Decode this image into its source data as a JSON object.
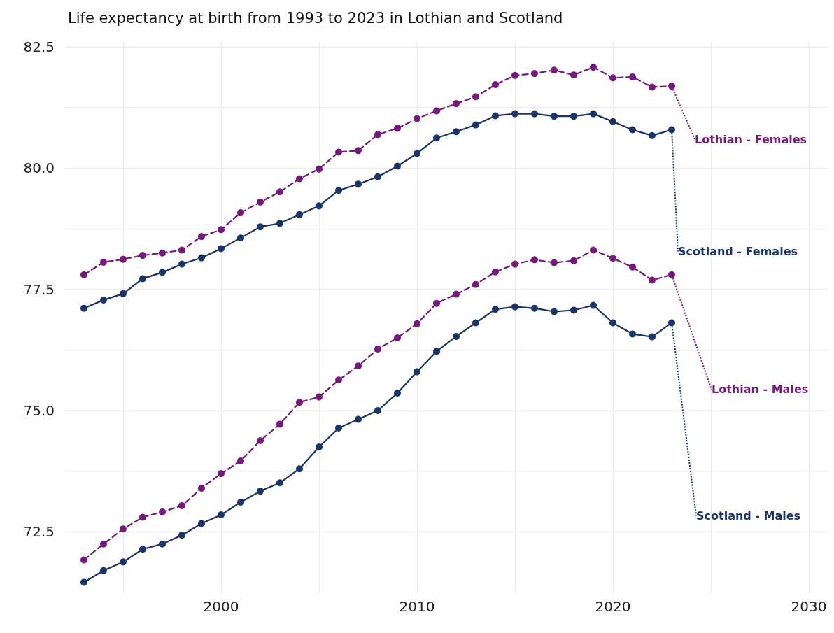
{
  "chart_data": {
    "type": "line",
    "title": "Life expectancy at birth from 1993 to 2023 in Lothian and Scotland",
    "x": [
      1993,
      1994,
      1995,
      1996,
      1997,
      1998,
      1999,
      2000,
      2001,
      2002,
      2003,
      2004,
      2005,
      2006,
      2007,
      2008,
      2009,
      2010,
      2011,
      2012,
      2013,
      2014,
      2015,
      2016,
      2017,
      2018,
      2019,
      2020,
      2021,
      2022,
      2023
    ],
    "series": [
      {
        "name": "Lothian - Females",
        "color": "#751a7b",
        "line_style": "dashed",
        "values": [
          77.8,
          78.06,
          78.12,
          78.2,
          78.25,
          78.31,
          78.59,
          78.73,
          79.08,
          79.3,
          79.51,
          79.78,
          79.98,
          80.33,
          80.36,
          80.69,
          80.82,
          81.02,
          81.18,
          81.33,
          81.47,
          81.72,
          81.91,
          81.95,
          82.02,
          81.92,
          82.08,
          81.86,
          81.88,
          81.67,
          81.69
        ]
      },
      {
        "name": "Scotland - Females",
        "color": "#1b3468",
        "line_style": "solid",
        "values": [
          77.11,
          77.28,
          77.41,
          77.72,
          77.85,
          78.02,
          78.15,
          78.34,
          78.56,
          78.79,
          78.86,
          79.04,
          79.22,
          79.54,
          79.67,
          79.82,
          80.04,
          80.3,
          80.62,
          80.75,
          80.89,
          81.08,
          81.12,
          81.12,
          81.07,
          81.07,
          81.12,
          80.96,
          80.79,
          80.67,
          80.79
        ]
      },
      {
        "name": "Lothian - Males",
        "color": "#751a7b",
        "line_style": "dashed",
        "values": [
          71.92,
          72.25,
          72.56,
          72.8,
          72.91,
          73.04,
          73.4,
          73.7,
          73.96,
          74.38,
          74.72,
          75.17,
          75.28,
          75.63,
          75.92,
          76.27,
          76.5,
          76.79,
          77.21,
          77.4,
          77.6,
          77.86,
          78.02,
          78.11,
          78.05,
          78.09,
          78.31,
          78.14,
          77.96,
          77.69,
          77.8
        ]
      },
      {
        "name": "Scotland - Males",
        "color": "#1b3468",
        "line_style": "solid",
        "values": [
          71.46,
          71.7,
          71.88,
          72.14,
          72.25,
          72.43,
          72.67,
          72.85,
          73.11,
          73.34,
          73.51,
          73.8,
          74.25,
          74.64,
          74.82,
          75.0,
          75.36,
          75.8,
          76.22,
          76.53,
          76.81,
          77.09,
          77.14,
          77.11,
          77.04,
          77.07,
          77.17,
          76.81,
          76.58,
          76.52,
          76.81
        ]
      }
    ],
    "xlim": [
      1992,
      2031
    ],
    "xticks": [
      {
        "value": 1995,
        "label": null
      },
      2000,
      {
        "value": 2005,
        "label": null
      },
      2010,
      {
        "value": 2015,
        "label": null
      },
      2020,
      {
        "value": 2025,
        "label": null
      },
      2030
    ],
    "ylim": [
      71.25,
      82.6
    ],
    "yticks": [
      {
        "value": 72.5,
        "label": "72.5"
      },
      {
        "value": 73.75,
        "label": null
      },
      {
        "value": 75,
        "label": "75.0"
      },
      {
        "value": 76.25,
        "label": null
      },
      {
        "value": 77.5,
        "label": "77.5"
      },
      {
        "value": 78.75,
        "label": null
      },
      {
        "value": 80,
        "label": "80.0"
      },
      {
        "value": 81.25,
        "label": null
      },
      {
        "value": 82.5,
        "label": "82.5"
      }
    ],
    "grid": true,
    "legend": false,
    "marker": "circle"
  }
}
